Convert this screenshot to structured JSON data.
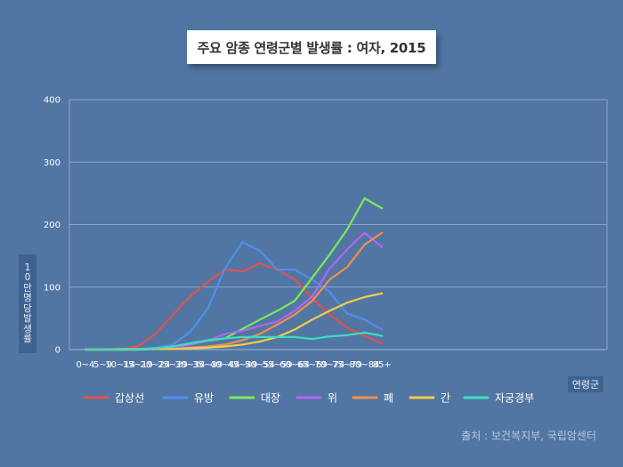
{
  "title": "주요 암종 연령군별 발생률 : 여자, 2015",
  "ylabel": "10만 명당 발생률",
  "xlabel": "연령군",
  "source": "출처 : 보건복지부, 국립암센터",
  "chart_data": {
    "type": "line",
    "title": "주요 암종 연령군별 발생률 : 여자, 2015",
    "xlabel": "연령군",
    "ylabel": "10만 명당 발생률",
    "ylim": [
      0,
      400
    ],
    "yticks": [
      0,
      100,
      200,
      300,
      400
    ],
    "grid": true,
    "legend": "bottom",
    "categories": [
      "0~4",
      "5~9",
      "10~14",
      "15~19",
      "20~24",
      "25~29",
      "30~34",
      "35~39",
      "40~44",
      "45~49",
      "50~54",
      "55~59",
      "60~64",
      "65~69",
      "70~74",
      "75~79",
      "80~84",
      "85+"
    ],
    "series": [
      {
        "name": "갑상선",
        "color": "#e05050",
        "values": [
          1,
          1,
          1,
          5,
          25,
          55,
          85,
          108,
          128,
          125,
          138,
          128,
          112,
          82,
          56,
          35,
          22,
          10
        ]
      },
      {
        "name": "유방",
        "color": "#4f8fe8",
        "values": [
          0,
          0,
          1,
          1,
          3,
          8,
          28,
          65,
          130,
          172,
          158,
          128,
          128,
          112,
          92,
          58,
          48,
          32
        ]
      },
      {
        "name": "대장",
        "color": "#7ee85a",
        "values": [
          0,
          0,
          1,
          1,
          1,
          4,
          10,
          14,
          18,
          33,
          48,
          62,
          78,
          115,
          152,
          192,
          242,
          226
        ]
      },
      {
        "name": "위",
        "color": "#b066f0",
        "values": [
          0,
          0,
          0,
          0,
          1,
          3,
          8,
          14,
          25,
          30,
          38,
          45,
          62,
          85,
          130,
          160,
          187,
          164
        ]
      },
      {
        "name": "폐",
        "color": "#f0904a",
        "values": [
          0,
          0,
          0,
          1,
          1,
          1,
          3,
          5,
          8,
          15,
          25,
          40,
          56,
          78,
          112,
          132,
          168,
          187
        ]
      },
      {
        "name": "간",
        "color": "#f4cc48",
        "values": [
          0,
          0,
          0,
          0,
          1,
          1,
          2,
          3,
          5,
          8,
          13,
          20,
          32,
          48,
          62,
          75,
          84,
          90
        ]
      },
      {
        "name": "자궁경부",
        "color": "#3cdcc4",
        "values": [
          0,
          0,
          0,
          0,
          2,
          5,
          10,
          15,
          18,
          20,
          20,
          20,
          20,
          17,
          21,
          23,
          27,
          22
        ]
      }
    ]
  }
}
